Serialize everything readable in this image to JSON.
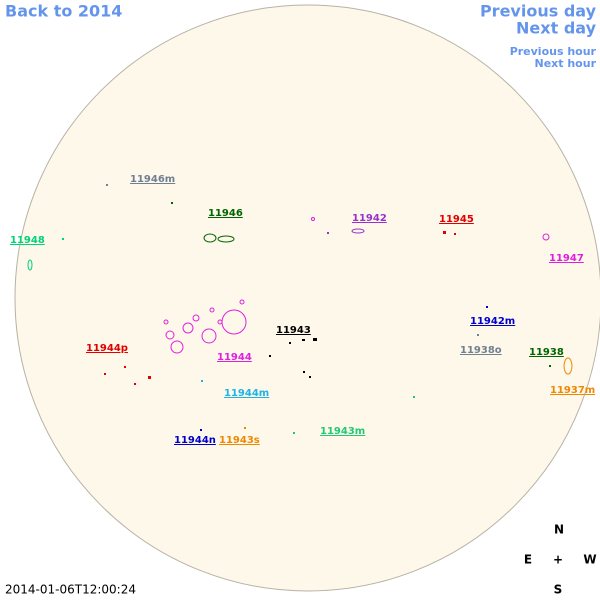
{
  "header": {
    "back_link": "Back to 2014",
    "previous_day": "Previous day",
    "next_day": "Next day",
    "previous_hour": "Previous hour",
    "next_hour": "Next hour"
  },
  "regions": [
    {
      "label": "11946m",
      "color": "#708090"
    },
    {
      "label": "11946",
      "color": "#006400"
    },
    {
      "label": "11948",
      "color": "#00d27a"
    },
    {
      "label": "11942",
      "color": "#9932cc"
    },
    {
      "label": "11945",
      "color": "#e00000"
    },
    {
      "label": "11947",
      "color": "#e020e0"
    },
    {
      "label": "11943",
      "color": "#000000"
    },
    {
      "label": "11942m",
      "color": "#0000cc"
    },
    {
      "label": "11944p",
      "color": "#e00000"
    },
    {
      "label": "11944",
      "color": "#e020e0"
    },
    {
      "label": "11938o",
      "color": "#708090"
    },
    {
      "label": "11938",
      "color": "#006400"
    },
    {
      "label": "11937m",
      "color": "#ee8800"
    },
    {
      "label": "11944m",
      "color": "#1eb4e6"
    },
    {
      "label": "11943m",
      "color": "#22c878"
    },
    {
      "label": "11944n",
      "color": "#0000cc"
    },
    {
      "label": "11943s",
      "color": "#ee8800"
    }
  ],
  "compass": {
    "north": "N",
    "east": "E",
    "center": "+",
    "west": "W",
    "south": "S"
  },
  "timestamp": "2014-01-06T12:00:24"
}
